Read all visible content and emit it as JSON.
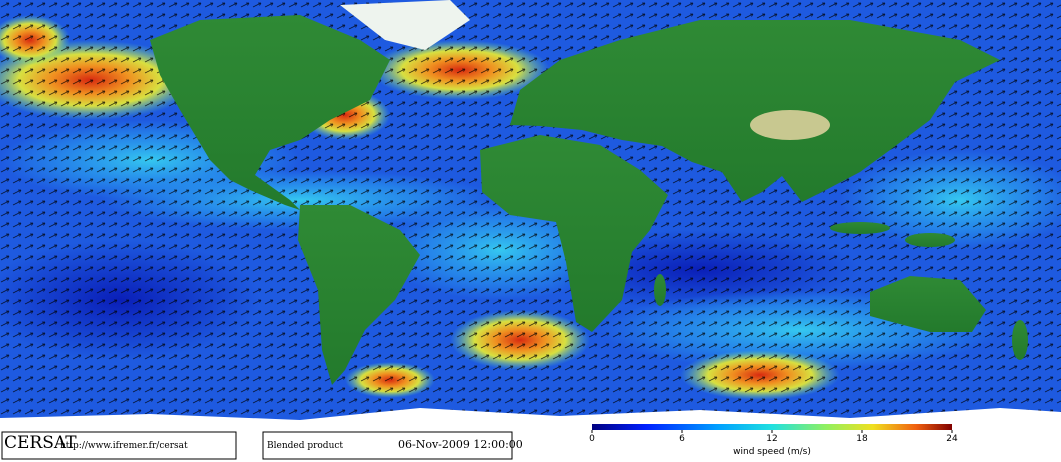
{
  "footer": {
    "logo": "CERSAT",
    "url": "http://www.ifremer.fr/cersat",
    "product": "Blended product",
    "date": "06-Nov-2009 12:00:00"
  },
  "colorbar": {
    "label": "wind speed (m/s)",
    "lim": [
      0,
      24
    ],
    "ticks": [
      0,
      6,
      12,
      18,
      24
    ]
  }
}
